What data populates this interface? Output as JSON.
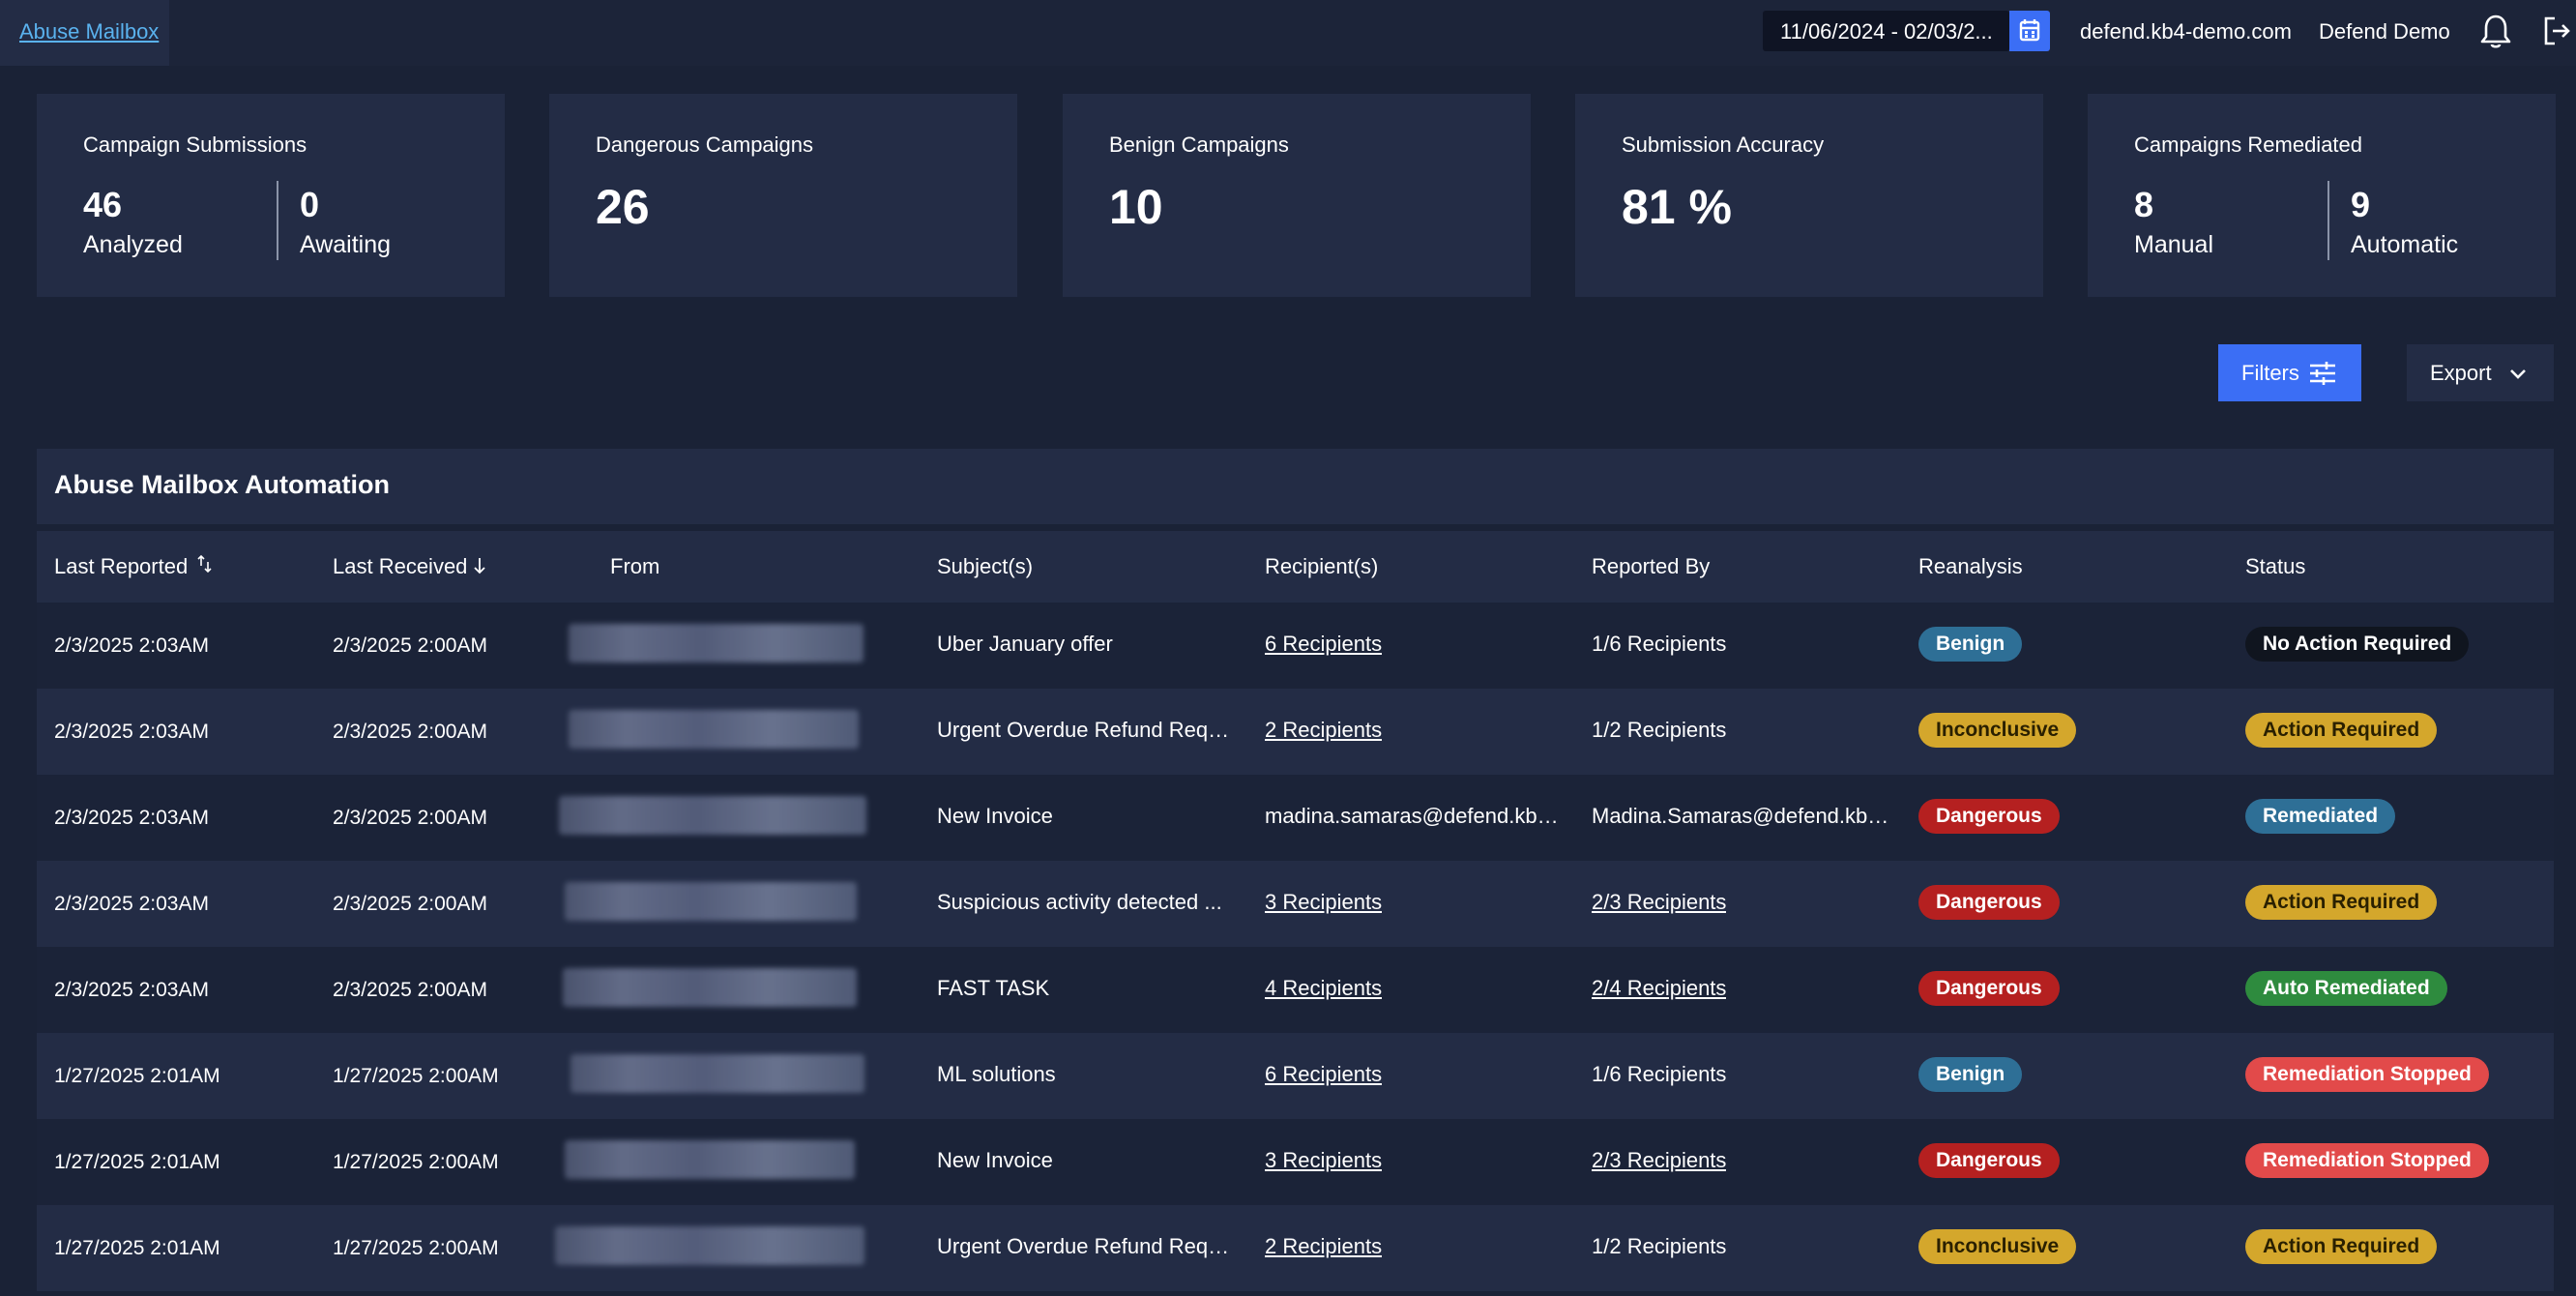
{
  "topbar": {
    "breadcrumb": "Abuse Mailbox",
    "date_range": "11/06/2024 - 02/03/2...",
    "domain": "defend.kb4-demo.com",
    "account": "Defend Demo"
  },
  "cards": {
    "submissions": {
      "title": "Campaign Submissions",
      "left_num": "46",
      "left_label": "Analyzed",
      "right_num": "0",
      "right_label": "Awaiting"
    },
    "dangerous": {
      "title": "Dangerous Campaigns",
      "value": "26"
    },
    "benign": {
      "title": "Benign Campaigns",
      "value": "10"
    },
    "accuracy": {
      "title": "Submission Accuracy",
      "value": "81 %"
    },
    "remediated": {
      "title": "Campaigns Remediated",
      "left_num": "8",
      "left_label": "Manual",
      "right_num": "9",
      "right_label": "Automatic"
    }
  },
  "actions": {
    "filters": "Filters",
    "export": "Export"
  },
  "table": {
    "title": "Abuse Mailbox Automation",
    "columns": [
      "Last Reported",
      "Last Received",
      "From",
      "Subject(s)",
      "Recipient(s)",
      "Reported By",
      "Reanalysis",
      "Status"
    ],
    "rows": [
      {
        "reported": "2/3/2025 2:03AM",
        "received": "2/3/2025 2:00AM",
        "subject": "Uber January offer",
        "recipients": "6 Recipients",
        "reported_by": "1/6 Recipients",
        "reanalysis": "Benign",
        "status": "No Action Required"
      },
      {
        "reported": "2/3/2025 2:03AM",
        "received": "2/3/2025 2:00AM",
        "subject": "Urgent Overdue Refund Requ...",
        "recipients": "2 Recipients",
        "reported_by": "1/2 Recipients",
        "reanalysis": "Inconclusive",
        "status": "Action Required"
      },
      {
        "reported": "2/3/2025 2:03AM",
        "received": "2/3/2025 2:00AM",
        "subject": "New Invoice",
        "recipients": "madina.samaras@defend.kb4...",
        "reported_by": "Madina.Samaras@defend.kb4...",
        "reanalysis": "Dangerous",
        "status": "Remediated"
      },
      {
        "reported": "2/3/2025 2:03AM",
        "received": "2/3/2025 2:00AM",
        "subject": "Suspicious activity detected ...",
        "recipients": "3 Recipients",
        "reported_by": "2/3 Recipients",
        "reanalysis": "Dangerous",
        "status": "Action Required"
      },
      {
        "reported": "2/3/2025 2:03AM",
        "received": "2/3/2025 2:00AM",
        "subject": "FAST TASK",
        "recipients": "4 Recipients",
        "reported_by": "2/4 Recipients",
        "reanalysis": "Dangerous",
        "status": "Auto Remediated"
      },
      {
        "reported": "1/27/2025 2:01AM",
        "received": "1/27/2025 2:00AM",
        "subject": "ML solutions",
        "recipients": "6 Recipients",
        "reported_by": "1/6 Recipients",
        "reanalysis": "Benign",
        "status": "Remediation Stopped"
      },
      {
        "reported": "1/27/2025 2:01AM",
        "received": "1/27/2025 2:00AM",
        "subject": "New Invoice",
        "recipients": "3 Recipients",
        "reported_by": "2/3 Recipients",
        "reanalysis": "Dangerous",
        "status": "Remediation Stopped"
      },
      {
        "reported": "1/27/2025 2:01AM",
        "received": "1/27/2025 2:00AM",
        "subject": "Urgent Overdue Refund Requ...",
        "recipients": "2 Recipients",
        "reported_by": "1/2 Recipients",
        "reanalysis": "Inconclusive",
        "status": "Action Required"
      }
    ]
  },
  "colors": {
    "accent": "#3b6ef5",
    "benign": "#2e6f96",
    "inconclusive": "#d4a72c",
    "dangerous": "#b52020",
    "remediated": "#2e6f96",
    "auto_remediated": "#2e8b3e",
    "remediation_stopped": "#e24a4a",
    "action_required": "#d4a72c",
    "no_action": "#10151f"
  }
}
